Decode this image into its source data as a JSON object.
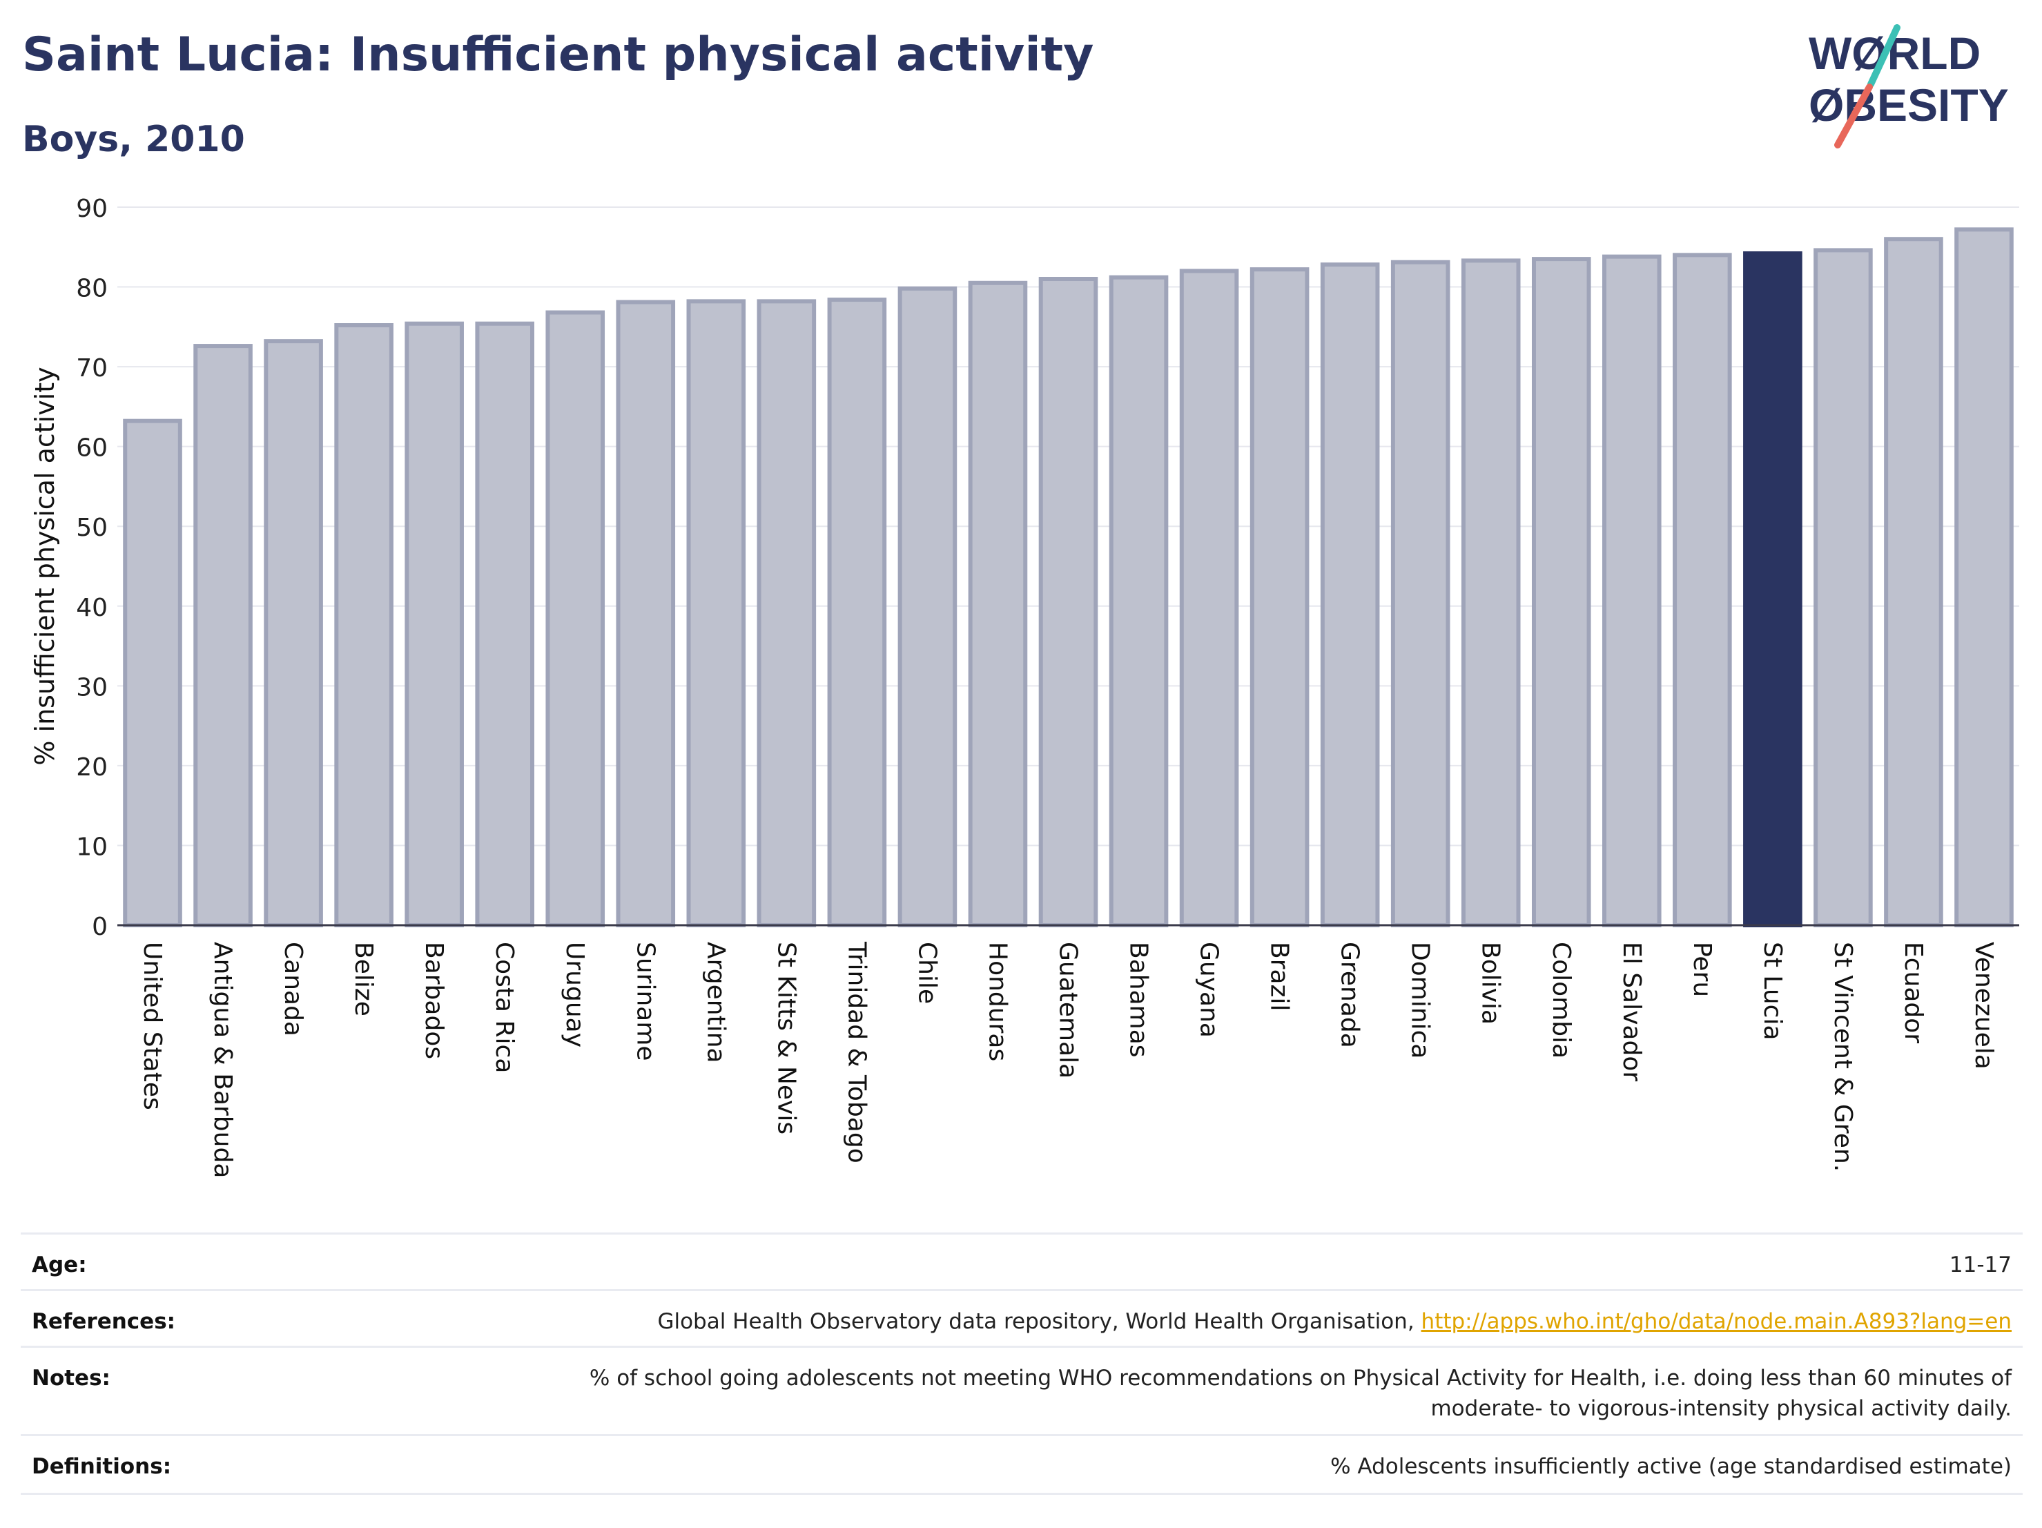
{
  "header": {
    "title": "Saint Lucia: Insufficient physical activity",
    "subtitle": "Boys, 2010"
  },
  "logo": {
    "line1": "WØRLD",
    "line2": "ØBESITY",
    "text_color": "#2a3461",
    "slash_colors": [
      "#3cc0b5",
      "#e8675a"
    ]
  },
  "chart_data": {
    "type": "bar",
    "ylabel": "% insufficient physical activity",
    "xlabel": "",
    "ylim": [
      0,
      90
    ],
    "yticks": [
      0,
      10,
      20,
      30,
      40,
      50,
      60,
      70,
      80,
      90
    ],
    "grid": true,
    "categories": [
      "United States",
      "Antigua & Barbuda",
      "Canada",
      "Belize",
      "Barbados",
      "Costa Rica",
      "Uruguay",
      "Suriname",
      "Argentina",
      "St Kitts & Nevis",
      "Trinidad & Tobago",
      "Chile",
      "Honduras",
      "Guatemala",
      "Bahamas",
      "Guyana",
      "Brazil",
      "Grenada",
      "Dominica",
      "Bolivia",
      "Colombia",
      "El Salvador",
      "Peru",
      "St Lucia",
      "St Vincent & Gren.",
      "Ecuador",
      "Venezuela"
    ],
    "values": [
      63.2,
      72.6,
      73.2,
      75.2,
      75.4,
      75.4,
      76.8,
      78.1,
      78.2,
      78.2,
      78.4,
      79.8,
      80.5,
      81.0,
      81.2,
      82.0,
      82.2,
      82.8,
      83.1,
      83.3,
      83.5,
      83.8,
      84.0,
      84.2,
      84.6,
      86.0,
      87.2
    ],
    "highlight": "St Lucia",
    "colors": {
      "bar": "#bec1ce",
      "bar_border": "#9fa4b9",
      "highlight": "#2a3461",
      "axis": "#3a3a4a",
      "grid": "#e6e7ee"
    }
  },
  "info": {
    "age": {
      "label": "Age:",
      "value": "11-17"
    },
    "references": {
      "label": "References:",
      "value": "Global Health Observatory data repository, World Health Organisation, ",
      "link": "http://apps.who.int/gho/data/node.main.A893?lang=en"
    },
    "notes": {
      "label": "Notes:",
      "line1": "% of school going adolescents not meeting WHO recommendations on Physical Activity for Health, i.e. doing less than 60 minutes of",
      "line2": "moderate- to vigorous-intensity physical activity daily."
    },
    "definitions": {
      "label": "Definitions:",
      "value": "% Adolescents insufficiently active (age standardised estimate)"
    }
  }
}
